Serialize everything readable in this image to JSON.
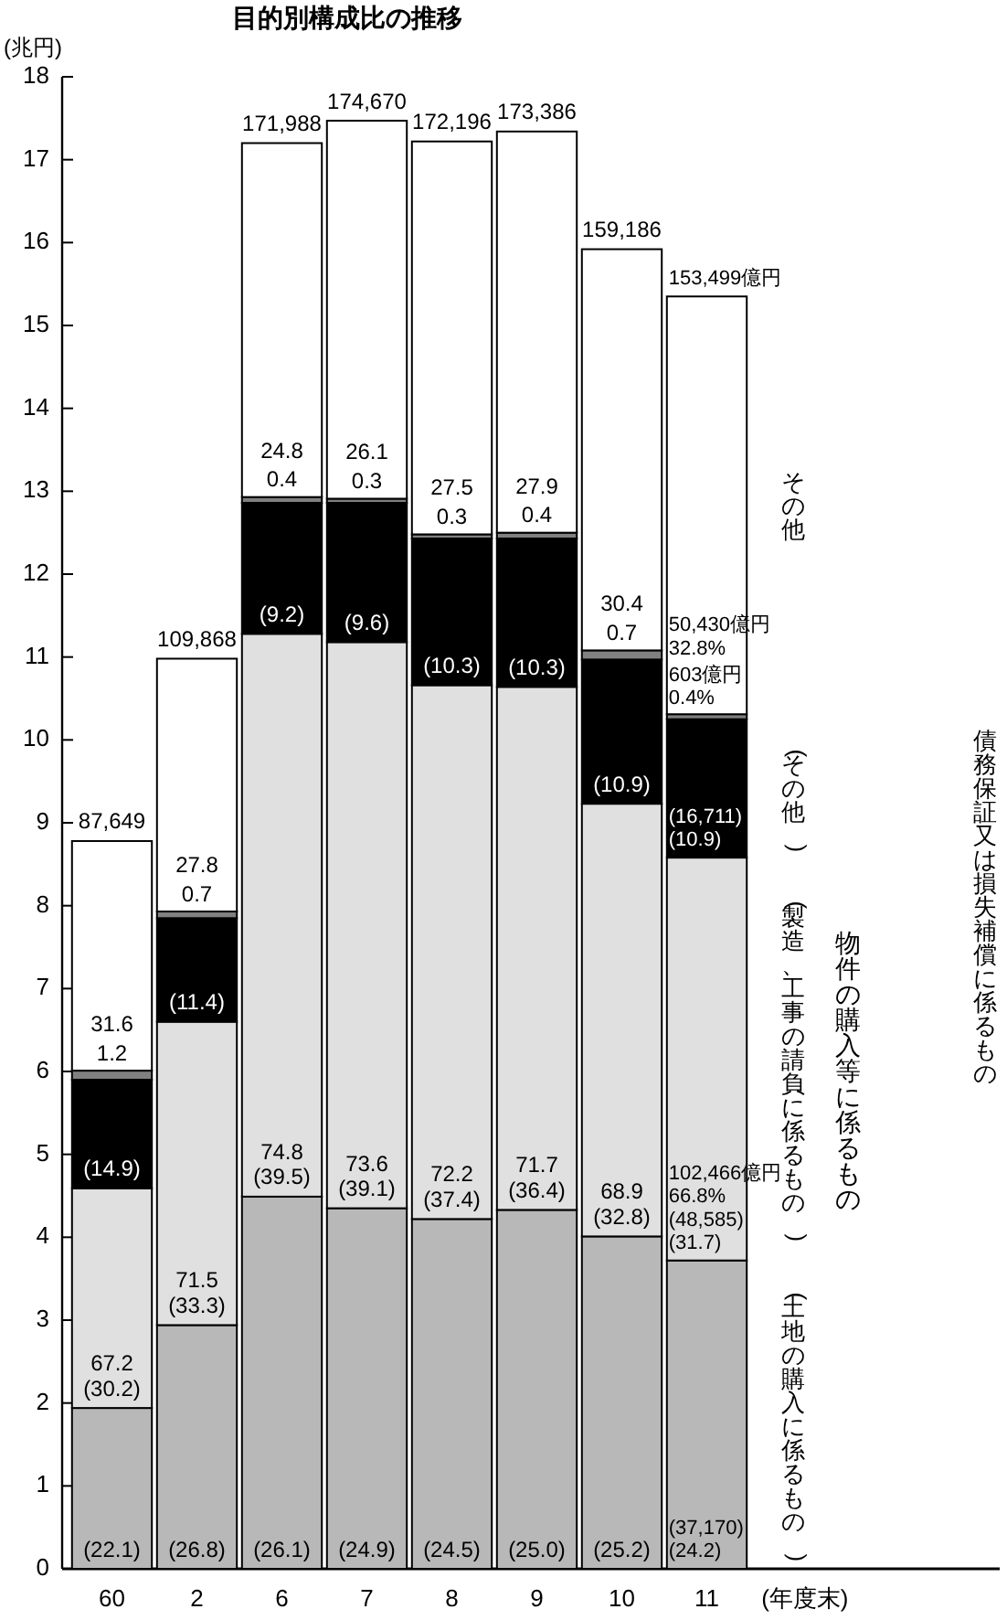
{
  "chart_data": {
    "type": "bar",
    "stacked": true,
    "title": "目的別構成比の推移",
    "ylabel": "(兆円)",
    "xlabel": "(年度末)",
    "categories": [
      "60",
      "2",
      "6",
      "7",
      "8",
      "9",
      "10",
      "11"
    ],
    "ylim": [
      0,
      18
    ],
    "yticks": [
      0,
      1,
      2,
      3,
      4,
      5,
      6,
      7,
      8,
      9,
      10,
      11,
      12,
      13,
      14,
      15,
      16,
      17,
      18
    ],
    "grid": false,
    "legend": false,
    "series": [
      {
        "name": "(土地の購入に係るもの)",
        "color": "#b8b8b8",
        "values": [
          1.94,
          2.94,
          4.49,
          4.35,
          4.22,
          4.33,
          4.01,
          3.72
        ]
      },
      {
        "name": "(製造、工事の請負に係るもの)",
        "color": "#e0e0e0",
        "values": [
          2.65,
          3.66,
          6.79,
          6.83,
          6.44,
          6.31,
          5.22,
          4.86
        ]
      },
      {
        "name": "(その他)",
        "color": "#000000",
        "values": [
          1.31,
          1.25,
          1.58,
          1.68,
          1.77,
          1.79,
          1.74,
          1.67
        ]
      },
      {
        "name": "債務保証又は損失補償に係るもの",
        "color": "#808080",
        "values": [
          0.11,
          0.08,
          0.07,
          0.05,
          0.05,
          0.07,
          0.11,
          0.06
        ]
      },
      {
        "name": "その他",
        "color": "#ffffff",
        "values": [
          2.77,
          3.05,
          4.27,
          4.56,
          4.74,
          4.84,
          4.84,
          5.04
        ]
      }
    ],
    "annotations": [
      {
        "text": "(22.1)",
        "x": "60",
        "y": 0
      },
      {
        "text": "67.2",
        "x": "60",
        "y": 1.94
      },
      {
        "text": "(30.2)",
        "x": "60",
        "y": 1.94
      },
      {
        "text": "(14.9)",
        "x": "60",
        "y": 4.59
      },
      {
        "text": "1.2",
        "x": "60",
        "y": 5.9
      },
      {
        "text": "31.6",
        "x": "60",
        "y": 6.01
      },
      {
        "text": "87,649",
        "x": "60",
        "y": 8.78
      },
      {
        "text": "(26.8)",
        "x": "2",
        "y": 0
      },
      {
        "text": "71.5",
        "x": "2",
        "y": 2.94
      },
      {
        "text": "(33.3)",
        "x": "2",
        "y": 2.94
      },
      {
        "text": "(11.4)",
        "x": "2",
        "y": 6.6
      },
      {
        "text": "0.7",
        "x": "2",
        "y": 7.85
      },
      {
        "text": "27.8",
        "x": "2",
        "y": 7.93
      },
      {
        "text": "109,868",
        "x": "2",
        "y": 10.98
      },
      {
        "text": "(26.1)",
        "x": "6",
        "y": 0
      },
      {
        "text": "74.8",
        "x": "6",
        "y": 4.49
      },
      {
        "text": "(39.5)",
        "x": "6",
        "y": 4.49
      },
      {
        "text": "(9.2)",
        "x": "6",
        "y": 11.28
      },
      {
        "text": "0.4",
        "x": "6",
        "y": 12.86
      },
      {
        "text": "24.8",
        "x": "6",
        "y": 12.93
      },
      {
        "text": "171,988",
        "x": "6",
        "y": 17.2
      },
      {
        "text": "(24.9)",
        "x": "7",
        "y": 0
      },
      {
        "text": "73.6",
        "x": "7",
        "y": 4.35
      },
      {
        "text": "(39.1)",
        "x": "7",
        "y": 4.35
      },
      {
        "text": "(9.6)",
        "x": "7",
        "y": 11.18
      },
      {
        "text": "0.3",
        "x": "7",
        "y": 12.86
      },
      {
        "text": "26.1",
        "x": "7",
        "y": 12.91
      },
      {
        "text": "174,670",
        "x": "7",
        "y": 17.47
      },
      {
        "text": "(24.5)",
        "x": "8",
        "y": 0
      },
      {
        "text": "72.2",
        "x": "8",
        "y": 4.22
      },
      {
        "text": "(37.4)",
        "x": "8",
        "y": 4.22
      },
      {
        "text": "(10.3)",
        "x": "8",
        "y": 10.66
      },
      {
        "text": "0.3",
        "x": "8",
        "y": 12.43
      },
      {
        "text": "27.5",
        "x": "8",
        "y": 12.48
      },
      {
        "text": "172,196",
        "x": "8",
        "y": 17.22
      },
      {
        "text": "(25.0)",
        "x": "9",
        "y": 0
      },
      {
        "text": "71.7",
        "x": "9",
        "y": 4.33
      },
      {
        "text": "(36.4)",
        "x": "9",
        "y": 4.33
      },
      {
        "text": "(10.3)",
        "x": "9",
        "y": 10.64
      },
      {
        "text": "0.4",
        "x": "9",
        "y": 12.43
      },
      {
        "text": "27.9",
        "x": "9",
        "y": 12.5
      },
      {
        "text": "173,386",
        "x": "9",
        "y": 17.34
      },
      {
        "text": "(25.2)",
        "x": "10",
        "y": 0
      },
      {
        "text": "68.9",
        "x": "10",
        "y": 4.01
      },
      {
        "text": "(32.8)",
        "x": "10",
        "y": 4.01
      },
      {
        "text": "(10.9)",
        "x": "10",
        "y": 9.23
      },
      {
        "text": "0.7",
        "x": "10",
        "y": 10.97
      },
      {
        "text": "30.4",
        "x": "10",
        "y": 11.08
      },
      {
        "text": "159,186",
        "x": "10",
        "y": 15.92
      },
      {
        "text": "(37,170)\n(24.2)",
        "x": "11",
        "y": 0
      },
      {
        "text": "102,466億円\n66.8%",
        "x": "11",
        "y": 3.72
      },
      {
        "text": "(48,585)\n(31.7)",
        "x": "11",
        "y": 3.72
      },
      {
        "text": "(16,711)\n(10.9)",
        "x": "11",
        "y": 8.58
      },
      {
        "text": "603億円\n0.4%",
        "x": "11",
        "y": 10.25
      },
      {
        "text": "50,430億円\n32.8%",
        "x": "11",
        "y": 10.31
      },
      {
        "text": "153,499億円",
        "x": "11",
        "y": 15.35
      },
      "物件の購入等に係るもの"
    ]
  }
}
